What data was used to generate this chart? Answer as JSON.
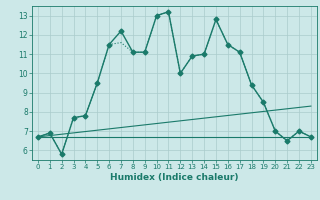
{
  "title": "",
  "xlabel": "Humidex (Indice chaleur)",
  "xlim": [
    -0.5,
    23.5
  ],
  "ylim": [
    5.5,
    13.5
  ],
  "xticks": [
    0,
    1,
    2,
    3,
    4,
    5,
    6,
    7,
    8,
    9,
    10,
    11,
    12,
    13,
    14,
    15,
    16,
    17,
    18,
    19,
    20,
    21,
    22,
    23
  ],
  "yticks": [
    6,
    7,
    8,
    9,
    10,
    11,
    12,
    13
  ],
  "bg_color": "#cce8e8",
  "line_color": "#1a7a6a",
  "grid_color": "#aacccc",
  "lines": [
    {
      "x": [
        0,
        1,
        2,
        3,
        4,
        5,
        6,
        7,
        8,
        9,
        10,
        11,
        12,
        13,
        14,
        15,
        16,
        17,
        18,
        19,
        20,
        21,
        22,
        23
      ],
      "y": [
        6.7,
        6.9,
        5.8,
        7.7,
        7.8,
        9.5,
        11.5,
        12.2,
        11.1,
        11.1,
        13.0,
        13.2,
        10.0,
        10.9,
        11.0,
        12.8,
        11.5,
        11.1,
        9.4,
        8.5,
        7.0,
        6.5,
        7.0,
        6.7
      ],
      "style": "-",
      "marker": "D",
      "marker_size": 2.5,
      "linewidth": 1.0
    },
    {
      "x": [
        0,
        1,
        2,
        3,
        4,
        5,
        6,
        7,
        8,
        9,
        10,
        11,
        12,
        13,
        14,
        15,
        16,
        17,
        18,
        19,
        20,
        21,
        22,
        23
      ],
      "y": [
        6.7,
        6.9,
        5.8,
        7.7,
        7.8,
        9.5,
        11.5,
        11.6,
        11.1,
        11.1,
        13.0,
        13.2,
        10.0,
        10.9,
        11.0,
        12.8,
        11.5,
        11.1,
        9.4,
        8.5,
        7.0,
        6.5,
        7.0,
        6.7
      ],
      "style": ":",
      "marker": null,
      "marker_size": 0,
      "linewidth": 0.8
    },
    {
      "x": [
        0,
        23
      ],
      "y": [
        6.7,
        8.3
      ],
      "style": "-",
      "marker": null,
      "marker_size": 0,
      "linewidth": 0.8
    },
    {
      "x": [
        0,
        23
      ],
      "y": [
        6.7,
        6.7
      ],
      "style": "-",
      "marker": null,
      "marker_size": 0,
      "linewidth": 0.8
    }
  ]
}
